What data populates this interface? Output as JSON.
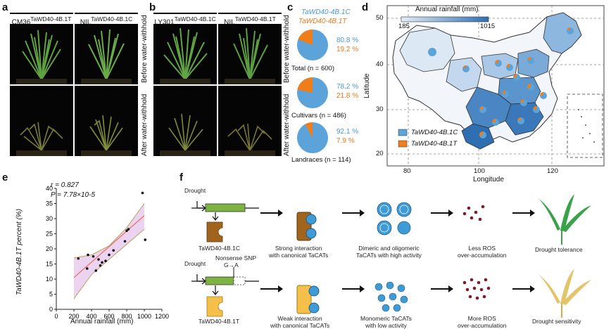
{
  "panels": {
    "a": "a",
    "b": "b",
    "c": "c",
    "d": "d",
    "e": "e",
    "f": "f"
  },
  "panel_a": {
    "cols": [
      "CM36",
      "NIL"
    ],
    "col_sup": [
      "TaWD40-4B.1T",
      "TaWD40-4B.1C"
    ],
    "rows": [
      "Before water-withhold",
      "After water-withhold"
    ]
  },
  "panel_b": {
    "cols": [
      "LY301",
      "NIL"
    ],
    "col_sup": [
      "TaWD40-4B.1C",
      "TaWD40-4B.1T"
    ],
    "rows": [
      "Before water-withhold",
      "After water-withhold"
    ]
  },
  "panel_c": {
    "legend": [
      "TaWD40-4B.1C",
      "TaWD40-4B.1T"
    ],
    "pies": [
      {
        "label": "Total (n = 600)",
        "c": "80.8 %",
        "t": "19.2 %",
        "c_frac": 0.808
      },
      {
        "label": "Cultivars (n = 486)",
        "c": "78.2 %",
        "t": "21.8 %",
        "c_frac": 0.782
      },
      {
        "label": "Landraces (n = 114)",
        "c": "92.1 %",
        "t": "7.9 %",
        "c_frac": 0.921
      }
    ],
    "colors": {
      "c": "#5ba3d9",
      "t": "#ef7d1a"
    }
  },
  "panel_d": {
    "scale_title": "Annual rainfall (mm)",
    "scale_min": "185",
    "scale_max": "1015",
    "ylabel": "Latitude",
    "xlabel": "Longitude",
    "yticks": [
      "50",
      "40",
      "30",
      "20"
    ],
    "xticks": [
      "80",
      "100",
      "120"
    ],
    "legend": [
      "TaWD40-4B.1C",
      "TaWD40-4B.1T"
    ]
  },
  "chart_data": {
    "type": "scatter",
    "xlabel": "Annual rainfall (mm)",
    "ylabel": "TaWD40-4B.1T percent (%)",
    "xlim": [
      0,
      1200
    ],
    "ylim": [
      0,
      40
    ],
    "xticks": [
      "0",
      "200",
      "400",
      "600",
      "800",
      "1000",
      "1200"
    ],
    "yticks": [
      "0",
      "5",
      "10",
      "15",
      "20",
      "25",
      "30",
      "35",
      "40"
    ],
    "annotation_r": "r = 0.827",
    "annotation_p": "P = 7.78×10-5",
    "points": [
      [
        250,
        16.8
      ],
      [
        350,
        13.5
      ],
      [
        360,
        18
      ],
      [
        420,
        17.5
      ],
      [
        450,
        12.8
      ],
      [
        480,
        16.5
      ],
      [
        500,
        14.5
      ],
      [
        520,
        15.5
      ],
      [
        560,
        16
      ],
      [
        600,
        18
      ],
      [
        650,
        19.5
      ],
      [
        780,
        22.5
      ],
      [
        800,
        26
      ],
      [
        820,
        26.5
      ],
      [
        980,
        38.5
      ],
      [
        1010,
        23
      ]
    ],
    "fit": [
      [
        200,
        10.5
      ],
      [
        1000,
        31
      ]
    ],
    "ci_upper": [
      [
        200,
        17
      ],
      [
        400,
        18
      ],
      [
        600,
        21
      ],
      [
        800,
        27
      ],
      [
        1000,
        35
      ]
    ],
    "ci_lower": [
      [
        200,
        3.5
      ],
      [
        400,
        11.5
      ],
      [
        600,
        16.5
      ],
      [
        800,
        21.5
      ],
      [
        1000,
        26.5
      ]
    ]
  },
  "panel_f": {
    "drought": "Drought",
    "gene_c": "TaWD40-4B.1C",
    "gene_t": "TaWD40-4B.1T",
    "snp": "Nonsense SNP",
    "snp_change": "G→A",
    "row1": [
      "Strong interaction\nwith canonical TaCATs",
      "Dimeric and oligomeric\nTaCATs with high activity",
      "Less ROS\nover-accumulation",
      "Drought tolerance"
    ],
    "row2": [
      "Weak interaction\nwith canonical TaCATs",
      "Monomeric TaCATs\nwith low activity",
      "More ROS\nover-accumulation",
      "Drought sensitivity"
    ]
  }
}
